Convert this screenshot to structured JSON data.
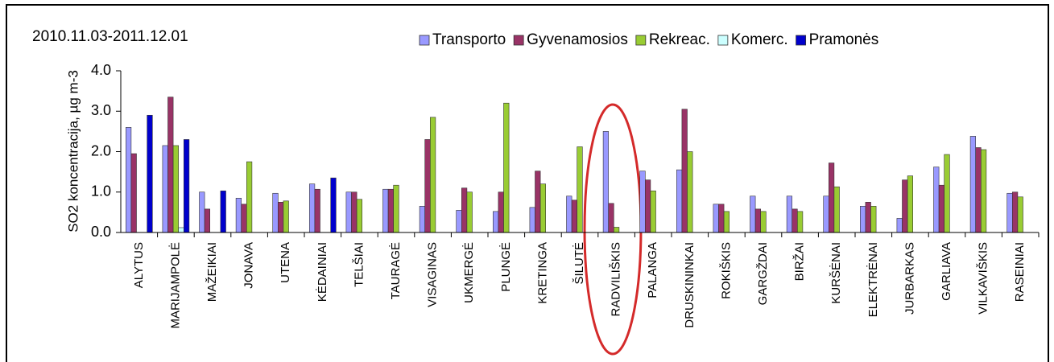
{
  "chart_data": {
    "type": "bar",
    "title": "2010.11.03-2011.12.01",
    "y_label": "SO2 koncentracija, µg m-3",
    "categories": [
      "ALYTUS",
      "MARIJAMPOLĖ",
      "MAŽEIKIAI",
      "JONAVA",
      "UTENA",
      "KĖDAINIAI",
      "TELŠIAI",
      "TAURAGĖ",
      "VISAGINAS",
      "UKMERGĖ",
      "PLUNGĖ",
      "KRETINGA",
      "ŠILUTĖ",
      "RADVILIŠKIS",
      "PALANGA",
      "DRUSKININKAI",
      "ROKIŠKIS",
      "GARGŽDAI",
      "BIRŽAI",
      "KURŠĖNAI",
      "ELEKTRĖNAI",
      "JURBARKAS",
      "GARLIAVA",
      "VILKAVIŠKIS",
      "RASEINIAI"
    ],
    "series": [
      {
        "name": "Transporto",
        "color": "#9999ff",
        "values": [
          2.6,
          2.15,
          1.0,
          0.85,
          0.97,
          1.2,
          1.0,
          1.07,
          0.65,
          0.55,
          0.52,
          0.62,
          0.9,
          2.5,
          1.52,
          1.55,
          0.7,
          0.9,
          0.9,
          0.9,
          0.65,
          0.35,
          1.62,
          2.38,
          0.97
        ]
      },
      {
        "name": "Gyvenamosios",
        "color": "#993366",
        "values": [
          1.95,
          3.35,
          0.58,
          0.7,
          0.75,
          1.07,
          1.0,
          1.07,
          2.3,
          1.1,
          1.0,
          1.52,
          0.8,
          0.72,
          1.3,
          3.05,
          0.7,
          0.58,
          0.58,
          1.72,
          0.75,
          1.3,
          1.17,
          2.1,
          1.0
        ]
      },
      {
        "name": "Rekreac.",
        "color": "#99cc33",
        "values": [
          null,
          2.15,
          null,
          1.75,
          0.78,
          null,
          0.82,
          1.17,
          2.85,
          1.0,
          3.2,
          1.2,
          2.12,
          0.13,
          1.03,
          2.0,
          0.52,
          0.52,
          0.52,
          1.13,
          0.65,
          1.4,
          1.93,
          2.05,
          0.88
        ]
      },
      {
        "name": "Komerc.",
        "color": "#ccffff",
        "values": [
          null,
          0.12,
          null,
          null,
          null,
          null,
          null,
          null,
          null,
          null,
          null,
          null,
          null,
          null,
          null,
          null,
          null,
          null,
          null,
          null,
          null,
          null,
          null,
          null,
          null
        ]
      },
      {
        "name": "Pramonės",
        "color": "#0000cc",
        "values": [
          2.9,
          2.3,
          1.03,
          null,
          null,
          1.35,
          null,
          null,
          null,
          null,
          null,
          null,
          null,
          null,
          null,
          null,
          null,
          null,
          null,
          null,
          null,
          null,
          null,
          null,
          null
        ]
      }
    ],
    "ylim": [
      0,
      4
    ],
    "yticks": [
      {
        "value": 0,
        "label": "0.0"
      },
      {
        "value": 1,
        "label": "1.0"
      },
      {
        "value": 2,
        "label": "2.0"
      },
      {
        "value": 3,
        "label": "3.0"
      },
      {
        "value": 4,
        "label": "4.0"
      }
    ],
    "grid": false,
    "legend": "top-right"
  }
}
